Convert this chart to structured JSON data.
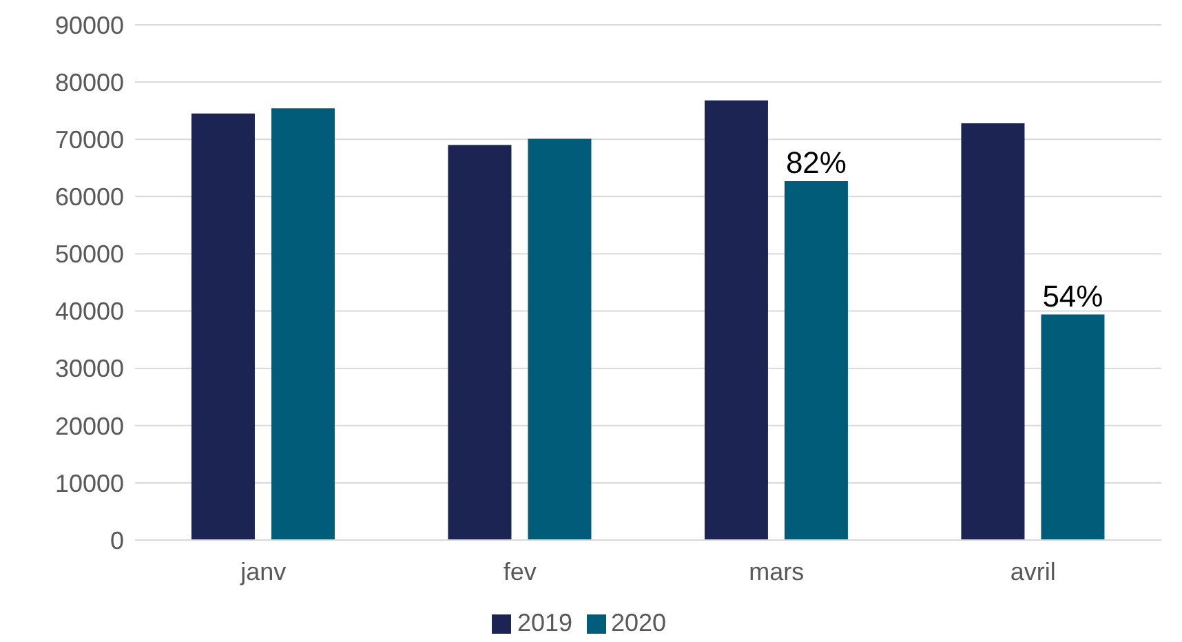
{
  "chart_data": {
    "type": "bar",
    "categories": [
      "janv",
      "fev",
      "mars",
      "avril"
    ],
    "series": [
      {
        "name": "2019",
        "color": "#1b2453",
        "values": [
          74500,
          69000,
          76800,
          72800
        ]
      },
      {
        "name": "2020",
        "color": "#015c7a",
        "values": [
          75400,
          70100,
          62700,
          39400
        ]
      }
    ],
    "annotations": [
      "82%",
      "54%"
    ],
    "ylim": [
      0,
      90000
    ],
    "yticks": [
      0,
      10000,
      20000,
      30000,
      40000,
      50000,
      60000,
      70000,
      80000,
      90000
    ],
    "grid": "y",
    "legend": "bottom"
  }
}
